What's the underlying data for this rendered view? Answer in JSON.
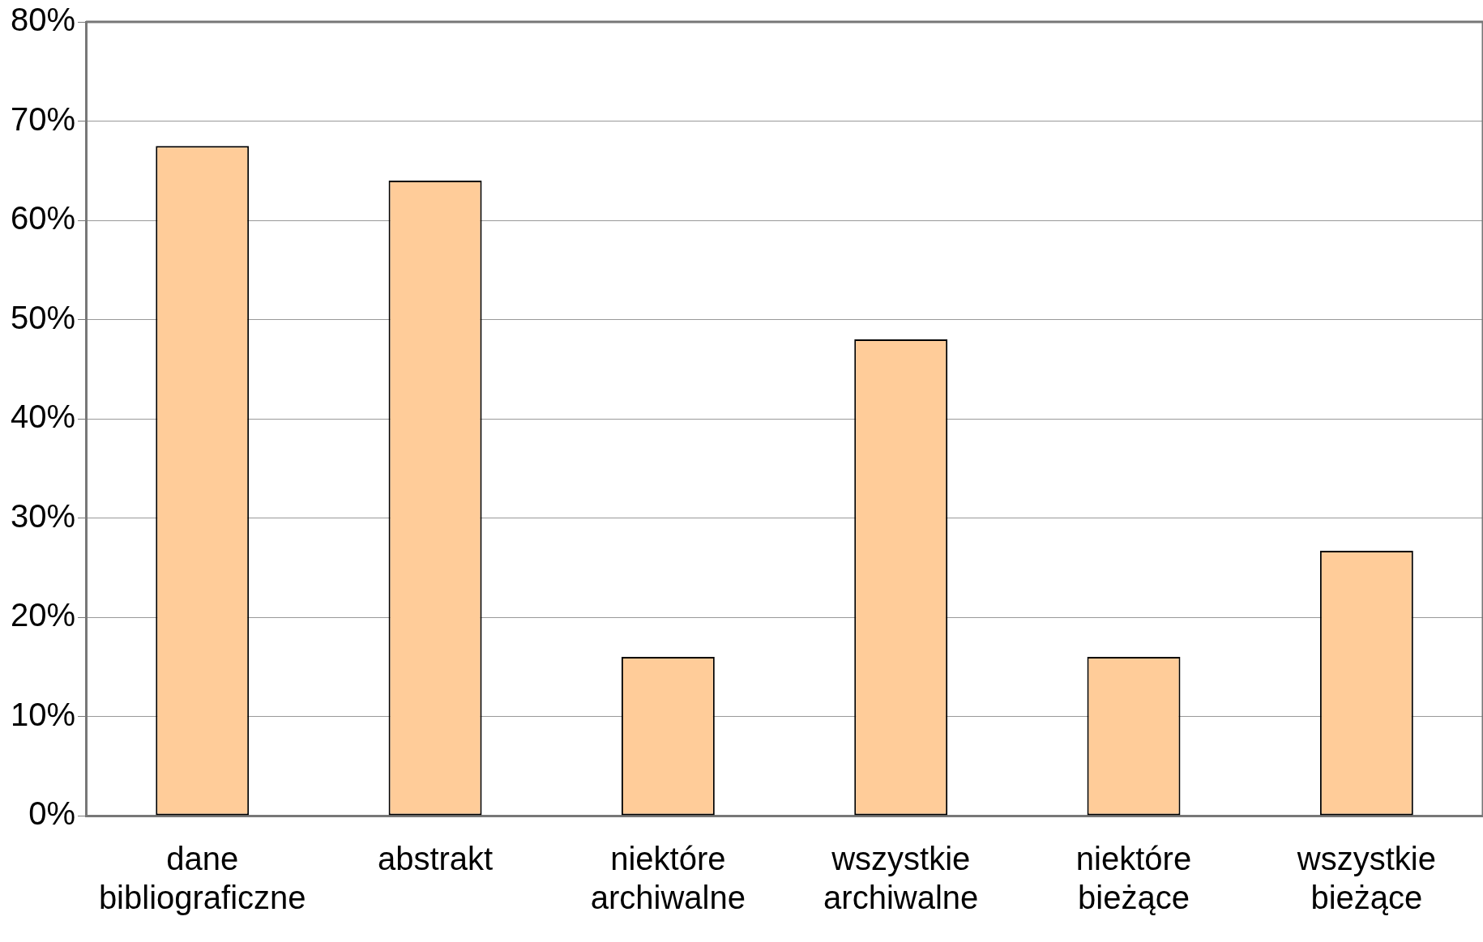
{
  "chart_data": {
    "type": "bar",
    "categories": [
      "dane bibliograficzne",
      "abstrakt",
      "niektóre archiwalne",
      "wszystkie archiwalne",
      "niektóre bieżące",
      "wszystkie bieżące"
    ],
    "values": [
      67.5,
      64,
      16,
      48,
      16,
      26.7
    ],
    "color": "#ffcc99",
    "ylim": [
      0,
      80
    ],
    "yticks": [
      {
        "value": 0,
        "label": "0%"
      },
      {
        "value": 10,
        "label": "10%"
      },
      {
        "value": 20,
        "label": "20%"
      },
      {
        "value": 30,
        "label": "30%"
      },
      {
        "value": 40,
        "label": "40%"
      },
      {
        "value": 50,
        "label": "50%"
      },
      {
        "value": 60,
        "label": "60%"
      },
      {
        "value": 70,
        "label": "70%"
      },
      {
        "value": 80,
        "label": "80%"
      }
    ],
    "grid": "y",
    "legend": false
  }
}
